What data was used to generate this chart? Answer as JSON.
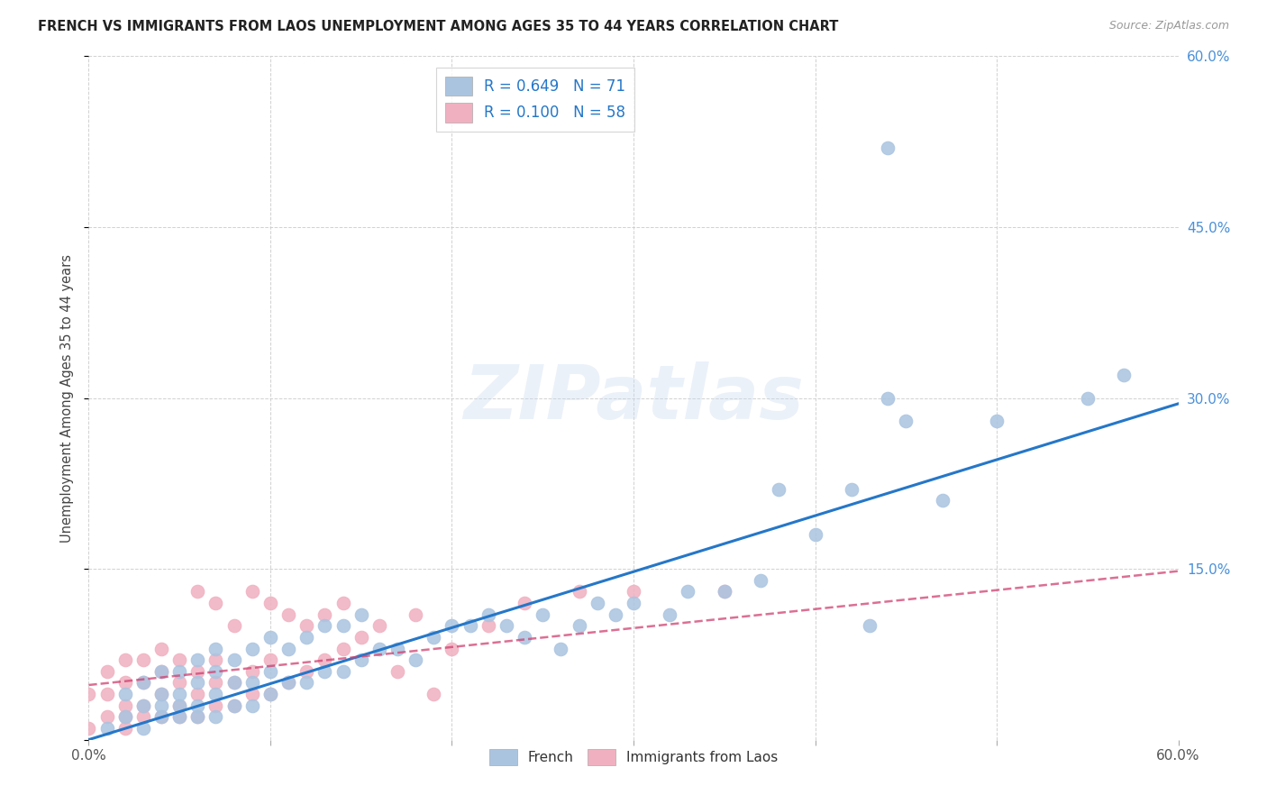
{
  "title": "FRENCH VS IMMIGRANTS FROM LAOS UNEMPLOYMENT AMONG AGES 35 TO 44 YEARS CORRELATION CHART",
  "source": "Source: ZipAtlas.com",
  "ylabel": "Unemployment Among Ages 35 to 44 years",
  "xlim": [
    0.0,
    0.6
  ],
  "ylim": [
    0.0,
    0.6
  ],
  "french_R": 0.649,
  "french_N": 71,
  "laos_R": 0.1,
  "laos_N": 58,
  "french_color": "#aac4e0",
  "french_line_color": "#2577c8",
  "laos_color": "#f0b0c0",
  "laos_line_color": "#d04070",
  "background_color": "#ffffff",
  "legend_label_french": "French",
  "legend_label_laos": "Immigrants from Laos",
  "french_line_x": [
    0.0,
    0.6
  ],
  "french_line_y": [
    0.0,
    0.295
  ],
  "laos_line_x": [
    0.0,
    0.6
  ],
  "laos_line_y": [
    0.048,
    0.148
  ],
  "french_x": [
    0.01,
    0.02,
    0.02,
    0.03,
    0.03,
    0.03,
    0.04,
    0.04,
    0.04,
    0.04,
    0.05,
    0.05,
    0.05,
    0.05,
    0.06,
    0.06,
    0.06,
    0.06,
    0.07,
    0.07,
    0.07,
    0.07,
    0.08,
    0.08,
    0.08,
    0.09,
    0.09,
    0.09,
    0.1,
    0.1,
    0.1,
    0.11,
    0.11,
    0.12,
    0.12,
    0.13,
    0.13,
    0.14,
    0.14,
    0.15,
    0.15,
    0.16,
    0.17,
    0.18,
    0.19,
    0.2,
    0.21,
    0.22,
    0.23,
    0.24,
    0.25,
    0.26,
    0.27,
    0.28,
    0.29,
    0.3,
    0.32,
    0.33,
    0.35,
    0.37,
    0.38,
    0.4,
    0.42,
    0.43,
    0.44,
    0.45,
    0.47,
    0.5,
    0.55,
    0.57,
    0.44
  ],
  "french_y": [
    0.01,
    0.02,
    0.04,
    0.01,
    0.03,
    0.05,
    0.02,
    0.03,
    0.04,
    0.06,
    0.02,
    0.03,
    0.04,
    0.06,
    0.02,
    0.03,
    0.05,
    0.07,
    0.02,
    0.04,
    0.06,
    0.08,
    0.03,
    0.05,
    0.07,
    0.03,
    0.05,
    0.08,
    0.04,
    0.06,
    0.09,
    0.05,
    0.08,
    0.05,
    0.09,
    0.06,
    0.1,
    0.06,
    0.1,
    0.07,
    0.11,
    0.08,
    0.08,
    0.07,
    0.09,
    0.1,
    0.1,
    0.11,
    0.1,
    0.09,
    0.11,
    0.08,
    0.1,
    0.12,
    0.11,
    0.12,
    0.11,
    0.13,
    0.13,
    0.14,
    0.22,
    0.18,
    0.22,
    0.1,
    0.3,
    0.28,
    0.21,
    0.28,
    0.3,
    0.32,
    0.52
  ],
  "laos_x": [
    0.0,
    0.0,
    0.01,
    0.01,
    0.01,
    0.02,
    0.02,
    0.02,
    0.02,
    0.02,
    0.03,
    0.03,
    0.03,
    0.03,
    0.04,
    0.04,
    0.04,
    0.04,
    0.05,
    0.05,
    0.05,
    0.05,
    0.06,
    0.06,
    0.06,
    0.06,
    0.07,
    0.07,
    0.07,
    0.07,
    0.08,
    0.08,
    0.08,
    0.09,
    0.09,
    0.09,
    0.1,
    0.1,
    0.1,
    0.11,
    0.11,
    0.12,
    0.12,
    0.13,
    0.13,
    0.14,
    0.14,
    0.15,
    0.16,
    0.17,
    0.18,
    0.19,
    0.2,
    0.22,
    0.24,
    0.27,
    0.3,
    0.35
  ],
  "laos_y": [
    0.01,
    0.04,
    0.02,
    0.04,
    0.06,
    0.01,
    0.02,
    0.03,
    0.05,
    0.07,
    0.02,
    0.03,
    0.05,
    0.07,
    0.02,
    0.04,
    0.06,
    0.08,
    0.02,
    0.03,
    0.05,
    0.07,
    0.02,
    0.04,
    0.06,
    0.13,
    0.03,
    0.05,
    0.07,
    0.12,
    0.03,
    0.05,
    0.1,
    0.04,
    0.06,
    0.13,
    0.04,
    0.07,
    0.12,
    0.05,
    0.11,
    0.06,
    0.1,
    0.07,
    0.11,
    0.08,
    0.12,
    0.09,
    0.1,
    0.06,
    0.11,
    0.04,
    0.08,
    0.1,
    0.12,
    0.13,
    0.13,
    0.13
  ]
}
